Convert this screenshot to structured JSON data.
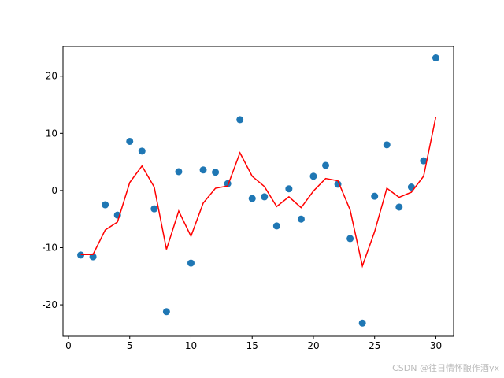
{
  "chart_data": {
    "type": "scatter",
    "x": [
      1,
      2,
      3,
      4,
      5,
      6,
      7,
      8,
      9,
      10,
      11,
      12,
      13,
      14,
      15,
      16,
      17,
      18,
      19,
      20,
      21,
      22,
      23,
      24,
      25,
      26,
      27,
      28,
      29,
      30
    ],
    "series": [
      {
        "type": "scatter",
        "color": "#1f77b4",
        "values": [
          -11.3,
          -11.6,
          -2.5,
          -4.3,
          8.6,
          6.9,
          -3.2,
          -21.2,
          3.3,
          -12.7,
          3.6,
          3.2,
          1.2,
          12.4,
          -1.4,
          -1.1,
          -6.2,
          0.3,
          -5.0,
          2.5,
          4.4,
          1.1,
          -8.4,
          -23.2,
          -1.0,
          8.0,
          -2.9,
          0.6,
          5.2,
          23.2
        ]
      },
      {
        "type": "line",
        "color": "#ff0000",
        "values": [
          -11.2,
          -11.2,
          -6.9,
          -5.5,
          1.4,
          4.3,
          0.6,
          -10.3,
          -3.6,
          -8.0,
          -2.2,
          0.4,
          0.8,
          6.6,
          2.5,
          0.7,
          -2.8,
          -1.1,
          -3.0,
          -0.1,
          2.1,
          1.7,
          -3.4,
          -13.2,
          -7.2,
          0.4,
          -1.2,
          -0.3,
          2.5,
          12.9
        ]
      }
    ],
    "xlim": [
      -0.45,
      31.45
    ],
    "xticks": [
      0,
      5,
      10,
      15,
      20,
      25,
      30
    ],
    "ylim": [
      -25.5,
      25.2
    ],
    "yticks": [
      -20,
      -10,
      0,
      10,
      20
    ],
    "watermark": "CSDN @往日情怀酿作酒yx"
  }
}
